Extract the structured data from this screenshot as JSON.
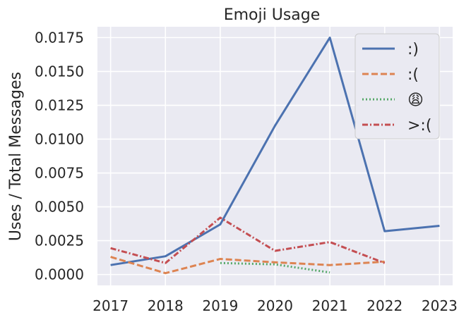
{
  "chart_data": {
    "type": "line",
    "title": "Emoji Usage",
    "xlabel": "",
    "ylabel": "Uses / Total Messages",
    "x": [
      2017,
      2018,
      2019,
      2020,
      2021,
      2022,
      2023
    ],
    "xticks": [
      "2017",
      "2018",
      "2019",
      "2020",
      "2021",
      "2022",
      "2023"
    ],
    "ylim": [
      -0.0008,
      0.0183
    ],
    "yticks": [
      "0.0000",
      "0.0025",
      "0.0050",
      "0.0075",
      "0.0100",
      "0.0125",
      "0.0150",
      "0.0175"
    ],
    "ytick_values": [
      0,
      0.0025,
      0.005,
      0.0075,
      0.01,
      0.0125,
      0.015,
      0.0175
    ],
    "grid": true,
    "legend_position": "top-right",
    "series": [
      {
        "name": ":)",
        "color": "#4c72b0",
        "style": "solid",
        "values": [
          0.0007,
          0.00135,
          0.0037,
          0.011,
          0.0175,
          0.0032,
          0.0036
        ]
      },
      {
        "name": ":(",
        "color": "#dd8452",
        "style": "dashed",
        "values": [
          0.0013,
          0.0001,
          0.00115,
          0.0009,
          0.0007,
          0.00095,
          null
        ]
      },
      {
        "name": "😩",
        "color": "#55a868",
        "style": "dotted",
        "values": [
          null,
          null,
          0.00085,
          0.00075,
          0.00015,
          null,
          null
        ]
      },
      {
        "name": ">:(",
        "color": "#c44e52",
        "style": "dashdot",
        "values": [
          0.00195,
          0.00085,
          0.0042,
          0.00175,
          0.0024,
          0.00085,
          null
        ]
      }
    ]
  }
}
